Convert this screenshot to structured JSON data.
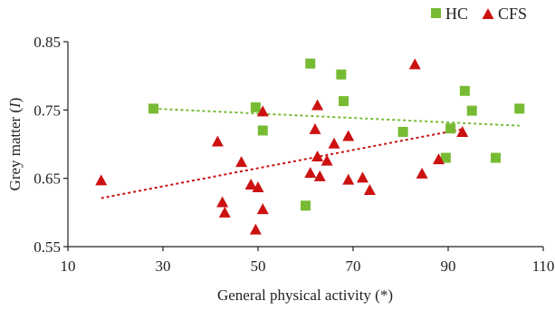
{
  "chart_data": {
    "type": "scatter",
    "xlabel": "General physical activity (*)",
    "ylabel_text": "Grey matter (",
    "ylabel_italic": "I",
    "ylabel_close": ")",
    "xlim": [
      10,
      110
    ],
    "ylim": [
      0.55,
      0.85
    ],
    "x_ticks": [
      10,
      30,
      50,
      70,
      90,
      110
    ],
    "y_ticks": [
      0.55,
      0.65,
      0.75,
      0.85
    ],
    "y_tick_labels": [
      "0.55",
      "0.65",
      "0.75",
      "0.85"
    ],
    "legend_position": "top-right",
    "series": [
      {
        "name": "HC",
        "marker": "square",
        "color": "#77bb33",
        "trend": {
          "x": [
            28,
            105
          ],
          "y": [
            0.752,
            0.727
          ]
        },
        "points": [
          {
            "x": 28,
            "y": 0.752
          },
          {
            "x": 49.5,
            "y": 0.754
          },
          {
            "x": 51,
            "y": 0.72
          },
          {
            "x": 60,
            "y": 0.61
          },
          {
            "x": 61,
            "y": 0.818
          },
          {
            "x": 67.5,
            "y": 0.802
          },
          {
            "x": 68,
            "y": 0.763
          },
          {
            "x": 80.5,
            "y": 0.718
          },
          {
            "x": 89.5,
            "y": 0.68
          },
          {
            "x": 90.5,
            "y": 0.723
          },
          {
            "x": 93.5,
            "y": 0.778
          },
          {
            "x": 95,
            "y": 0.749
          },
          {
            "x": 100,
            "y": 0.68
          },
          {
            "x": 105,
            "y": 0.752
          }
        ]
      },
      {
        "name": "CFS",
        "marker": "triangle",
        "color": "#cc1111",
        "trend": {
          "x": [
            17,
            93
          ],
          "y": [
            0.621,
            0.722
          ]
        },
        "points": [
          {
            "x": 17,
            "y": 0.647
          },
          {
            "x": 41.5,
            "y": 0.704
          },
          {
            "x": 42.5,
            "y": 0.615
          },
          {
            "x": 43,
            "y": 0.6
          },
          {
            "x": 46.5,
            "y": 0.674
          },
          {
            "x": 48.5,
            "y": 0.641
          },
          {
            "x": 49.5,
            "y": 0.575
          },
          {
            "x": 50,
            "y": 0.637
          },
          {
            "x": 51,
            "y": 0.605
          },
          {
            "x": 51,
            "y": 0.748
          },
          {
            "x": 61,
            "y": 0.658
          },
          {
            "x": 62,
            "y": 0.722
          },
          {
            "x": 62.5,
            "y": 0.757
          },
          {
            "x": 62.5,
            "y": 0.682
          },
          {
            "x": 63,
            "y": 0.653
          },
          {
            "x": 64.5,
            "y": 0.676
          },
          {
            "x": 66,
            "y": 0.701
          },
          {
            "x": 69,
            "y": 0.712
          },
          {
            "x": 69,
            "y": 0.648
          },
          {
            "x": 72,
            "y": 0.651
          },
          {
            "x": 73.5,
            "y": 0.633
          },
          {
            "x": 83,
            "y": 0.817
          },
          {
            "x": 84.5,
            "y": 0.657
          },
          {
            "x": 88,
            "y": 0.678
          },
          {
            "x": 93,
            "y": 0.718
          }
        ]
      }
    ]
  }
}
